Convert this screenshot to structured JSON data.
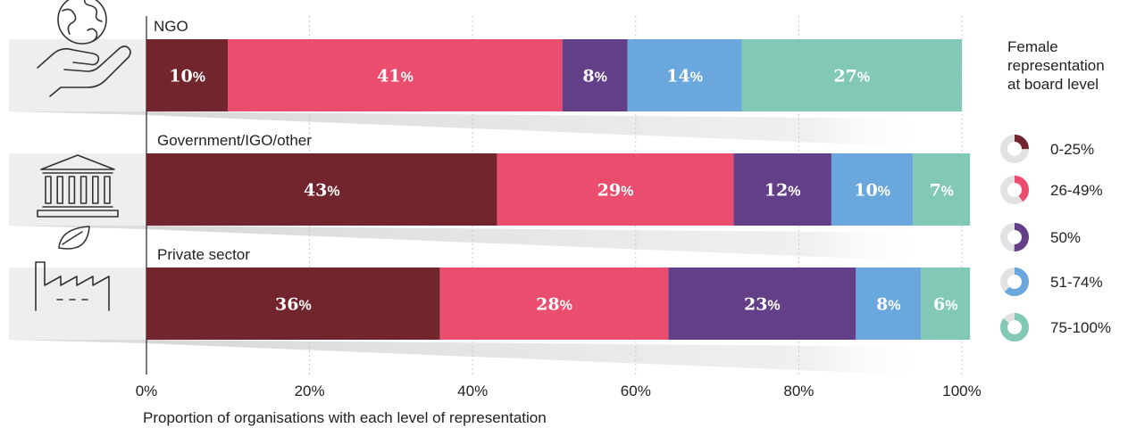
{
  "chart_data": {
    "type": "bar",
    "orientation": "horizontal",
    "stacked": true,
    "categories": [
      "NGO",
      "Government/IGO/other",
      "Private sector"
    ],
    "series": [
      {
        "name": "0-25%",
        "color": "#72252d",
        "values": [
          10,
          43,
          36
        ]
      },
      {
        "name": "26-49%",
        "color": "#ea4d6e",
        "values": [
          41,
          29,
          28
        ]
      },
      {
        "name": "50%",
        "color": "#633f88",
        "values": [
          8,
          12,
          23
        ]
      },
      {
        "name": "51-74%",
        "color": "#6aa7dc",
        "values": [
          14,
          10,
          8
        ]
      },
      {
        "name": "75-100%",
        "color": "#82c8b7",
        "values": [
          27,
          7,
          6
        ]
      }
    ],
    "value_suffix": "%",
    "xlim": [
      0,
      100
    ],
    "xticks": [
      "0%",
      "20%",
      "40%",
      "60%",
      "80%",
      "100%"
    ],
    "xlabel": "Proportion of organisations with each level of representation",
    "legend_title": "Female representation at board level",
    "legend_title_lines": [
      "Female",
      "representation",
      "at board level"
    ],
    "legend_position": "right",
    "grid": true,
    "icons": [
      "globe-in-hand-icon",
      "government-building-icon",
      "factory-leaf-icon"
    ]
  }
}
